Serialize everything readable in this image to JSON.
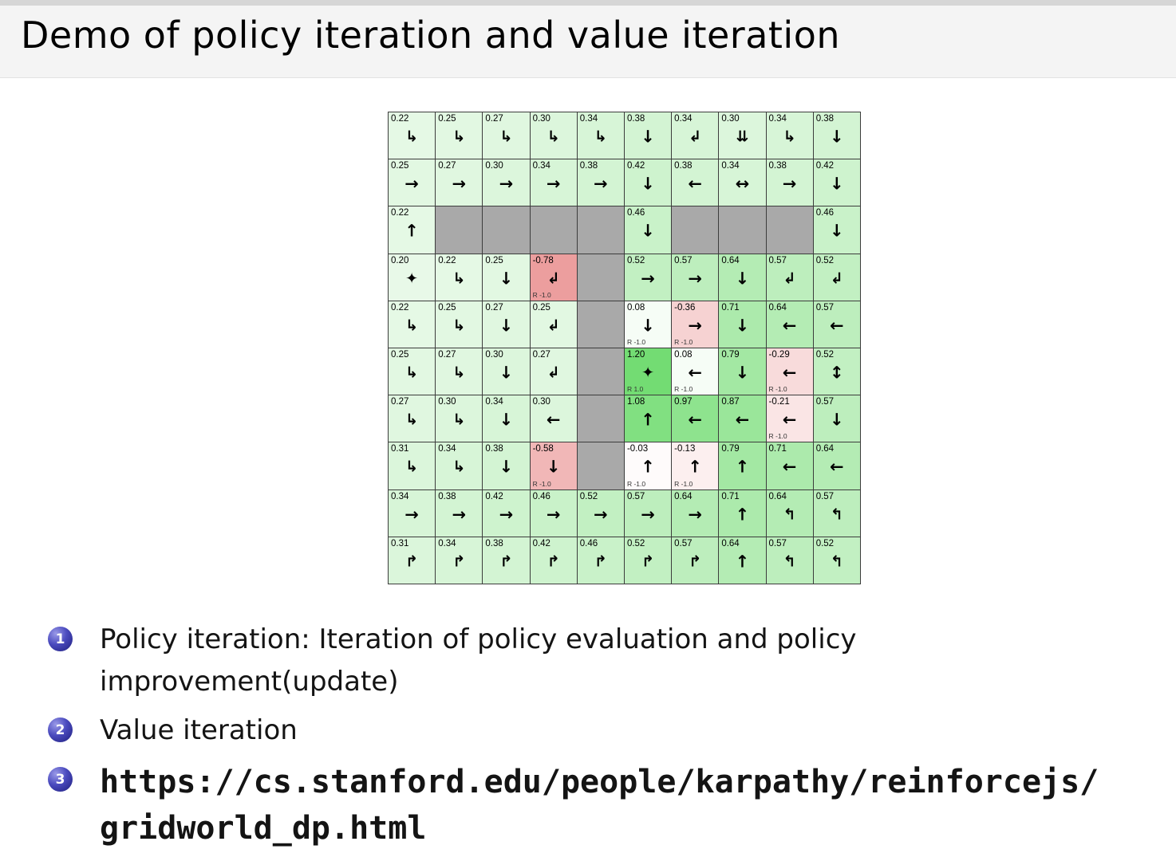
{
  "slide": {
    "title": "Demo of policy iteration and value iteration",
    "bullets": [
      {
        "num": "1",
        "text": "Policy iteration: Iteration of policy evaluation and policy improvement(update)"
      },
      {
        "num": "2",
        "text": "Value iteration"
      },
      {
        "num": "3",
        "lines": [
          "https://cs.stanford.edu/people/karpathy/reinforcejs/",
          "gridworld_dp.html"
        ]
      }
    ]
  },
  "colors": {
    "header_bg": "#f4f4f4",
    "bullet_ball": "#3b3bb0",
    "grid_line": "#3c3c3c",
    "wall": "#a9a9a9",
    "goal_green": "#73dc73",
    "penalty_red": "#ec9e9e"
  },
  "gridworld": {
    "rows": 10,
    "cols": 10,
    "arrow_glyphs": {
      "up": "↑",
      "down": "↓",
      "left": "←",
      "right": "→",
      "left-right": "↔",
      "up-down": "↕",
      "down-right": "↳",
      "down-left": "↲",
      "up-right": "↱",
      "up-left": "↰",
      "double-down": "⇊",
      "multi": "✦"
    },
    "cells": [
      [
        {
          "v": "0.22",
          "a": "down-right",
          "r": "",
          "bg": "#e5f9e5"
        },
        {
          "v": "0.25",
          "a": "down-right",
          "r": "",
          "bg": "#e2f8e2"
        },
        {
          "v": "0.27",
          "a": "down-right",
          "r": "",
          "bg": "#e0f7e0"
        },
        {
          "v": "0.30",
          "a": "down-right",
          "r": "",
          "bg": "#dcf6dc"
        },
        {
          "v": "0.34",
          "a": "down-right",
          "r": "",
          "bg": "#d7f5d7"
        },
        {
          "v": "0.38",
          "a": "down",
          "r": "",
          "bg": "#d3f4d3"
        },
        {
          "v": "0.34",
          "a": "down-left",
          "r": "",
          "bg": "#d7f5d7"
        },
        {
          "v": "0.30",
          "a": "double-down",
          "r": "",
          "bg": "#dcf6dc"
        },
        {
          "v": "0.34",
          "a": "down-right",
          "r": "",
          "bg": "#d7f5d7"
        },
        {
          "v": "0.38",
          "a": "down",
          "r": "",
          "bg": "#d3f4d3"
        }
      ],
      [
        {
          "v": "0.25",
          "a": "right",
          "r": "",
          "bg": "#e2f8e2"
        },
        {
          "v": "0.27",
          "a": "right",
          "r": "",
          "bg": "#e0f7e0"
        },
        {
          "v": "0.30",
          "a": "right",
          "r": "",
          "bg": "#dcf6dc"
        },
        {
          "v": "0.34",
          "a": "right",
          "r": "",
          "bg": "#d7f5d7"
        },
        {
          "v": "0.38",
          "a": "right",
          "r": "",
          "bg": "#d3f4d3"
        },
        {
          "v": "0.42",
          "a": "down",
          "r": "",
          "bg": "#cef3ce"
        },
        {
          "v": "0.38",
          "a": "left",
          "r": "",
          "bg": "#d3f4d3"
        },
        {
          "v": "0.34",
          "a": "left-right",
          "r": "",
          "bg": "#d7f5d7"
        },
        {
          "v": "0.38",
          "a": "right",
          "r": "",
          "bg": "#d3f4d3"
        },
        {
          "v": "0.42",
          "a": "down",
          "r": "",
          "bg": "#cef3ce"
        }
      ],
      [
        {
          "v": "0.22",
          "a": "up",
          "r": "",
          "bg": "#e5f9e5"
        },
        {
          "wall": true,
          "bg": "#a9a9a9"
        },
        {
          "wall": true,
          "bg": "#a9a9a9"
        },
        {
          "wall": true,
          "bg": "#a9a9a9"
        },
        {
          "wall": true,
          "bg": "#a9a9a9"
        },
        {
          "v": "0.46",
          "a": "down",
          "r": "",
          "bg": "#c9f2c9"
        },
        {
          "wall": true,
          "bg": "#a9a9a9"
        },
        {
          "wall": true,
          "bg": "#a9a9a9"
        },
        {
          "wall": true,
          "bg": "#a9a9a9"
        },
        {
          "v": "0.46",
          "a": "down",
          "r": "",
          "bg": "#c9f2c9"
        }
      ],
      [
        {
          "v": "0.20",
          "a": "multi",
          "r": "",
          "bg": "#e8f9e8"
        },
        {
          "v": "0.22",
          "a": "down-right",
          "r": "",
          "bg": "#e5f9e5"
        },
        {
          "v": "0.25",
          "a": "down",
          "r": "",
          "bg": "#e2f8e2"
        },
        {
          "v": "-0.78",
          "a": "down-left",
          "r": "R -1.0",
          "bg": "#ec9e9e"
        },
        {
          "wall": true,
          "bg": "#a9a9a9"
        },
        {
          "v": "0.52",
          "a": "right",
          "r": "",
          "bg": "#c2f0c2"
        },
        {
          "v": "0.57",
          "a": "right",
          "r": "",
          "bg": "#bdeebd"
        },
        {
          "v": "0.64",
          "a": "down",
          "r": "",
          "bg": "#b4ecb4"
        },
        {
          "v": "0.57",
          "a": "down-left",
          "r": "",
          "bg": "#bdeebd"
        },
        {
          "v": "0.52",
          "a": "down-left",
          "r": "",
          "bg": "#c2f0c2"
        }
      ],
      [
        {
          "v": "0.22",
          "a": "down-right",
          "r": "",
          "bg": "#e5f9e5"
        },
        {
          "v": "0.25",
          "a": "down-right",
          "r": "",
          "bg": "#e2f8e2"
        },
        {
          "v": "0.27",
          "a": "down",
          "r": "",
          "bg": "#e0f7e0"
        },
        {
          "v": "0.25",
          "a": "down-left",
          "r": "",
          "bg": "#e2f8e2"
        },
        {
          "wall": true,
          "bg": "#a9a9a9"
        },
        {
          "v": "0.08",
          "a": "down",
          "r": "R -1.0",
          "bg": "#f6fdf6"
        },
        {
          "v": "-0.36",
          "a": "right",
          "r": "R -1.0",
          "bg": "#f6d2d2"
        },
        {
          "v": "0.71",
          "a": "down",
          "r": "",
          "bg": "#aceaac"
        },
        {
          "v": "0.64",
          "a": "left",
          "r": "",
          "bg": "#b4ecb4"
        },
        {
          "v": "0.57",
          "a": "left",
          "r": "",
          "bg": "#bdeebd"
        }
      ],
      [
        {
          "v": "0.25",
          "a": "down-right",
          "r": "",
          "bg": "#e2f8e2"
        },
        {
          "v": "0.27",
          "a": "down-right",
          "r": "",
          "bg": "#e0f7e0"
        },
        {
          "v": "0.30",
          "a": "down",
          "r": "",
          "bg": "#dcf6dc"
        },
        {
          "v": "0.27",
          "a": "down-left",
          "r": "",
          "bg": "#e0f7e0"
        },
        {
          "wall": true,
          "bg": "#a9a9a9"
        },
        {
          "v": "1.20",
          "a": "multi",
          "r": "R 1.0",
          "bg": "#73dc73"
        },
        {
          "v": "0.08",
          "a": "left",
          "r": "R -1.0",
          "bg": "#f6fdf6"
        },
        {
          "v": "0.79",
          "a": "down",
          "r": "",
          "bg": "#a3e8a3"
        },
        {
          "v": "-0.29",
          "a": "left",
          "r": "R -1.0",
          "bg": "#f8dbdb"
        },
        {
          "v": "0.52",
          "a": "up-down",
          "r": "",
          "bg": "#c2f0c2"
        }
      ],
      [
        {
          "v": "0.27",
          "a": "down-right",
          "r": "",
          "bg": "#e0f7e0"
        },
        {
          "v": "0.30",
          "a": "down-right",
          "r": "",
          "bg": "#dcf6dc"
        },
        {
          "v": "0.34",
          "a": "down",
          "r": "",
          "bg": "#d7f5d7"
        },
        {
          "v": "0.30",
          "a": "left",
          "r": "",
          "bg": "#dcf6dc"
        },
        {
          "wall": true,
          "bg": "#a9a9a9"
        },
        {
          "v": "1.08",
          "a": "up",
          "r": "",
          "bg": "#81e081"
        },
        {
          "v": "0.97",
          "a": "left",
          "r": "",
          "bg": "#8ee38e"
        },
        {
          "v": "0.87",
          "a": "left",
          "r": "",
          "bg": "#9ae69a"
        },
        {
          "v": "-0.21",
          "a": "left",
          "r": "R -1.0",
          "bg": "#fae5e5"
        },
        {
          "v": "0.57",
          "a": "down",
          "r": "",
          "bg": "#bdeebd"
        }
      ],
      [
        {
          "v": "0.31",
          "a": "down-right",
          "r": "",
          "bg": "#dbf6db"
        },
        {
          "v": "0.34",
          "a": "down-right",
          "r": "",
          "bg": "#d7f5d7"
        },
        {
          "v": "0.38",
          "a": "down",
          "r": "",
          "bg": "#d3f4d3"
        },
        {
          "v": "-0.58",
          "a": "down",
          "r": "R -1.0",
          "bg": "#f1b7b7"
        },
        {
          "wall": true,
          "bg": "#a9a9a9"
        },
        {
          "v": "-0.03",
          "a": "up",
          "r": "R -1.0",
          "bg": "#fefbfb"
        },
        {
          "v": "-0.13",
          "a": "up",
          "r": "R -1.0",
          "bg": "#fcefef"
        },
        {
          "v": "0.79",
          "a": "up",
          "r": "",
          "bg": "#a3e8a3"
        },
        {
          "v": "0.71",
          "a": "left",
          "r": "",
          "bg": "#aceaac"
        },
        {
          "v": "0.64",
          "a": "left",
          "r": "",
          "bg": "#b4ecb4"
        }
      ],
      [
        {
          "v": "0.34",
          "a": "right",
          "r": "",
          "bg": "#d7f5d7"
        },
        {
          "v": "0.38",
          "a": "right",
          "r": "",
          "bg": "#d3f4d3"
        },
        {
          "v": "0.42",
          "a": "right",
          "r": "",
          "bg": "#cef3ce"
        },
        {
          "v": "0.46",
          "a": "right",
          "r": "",
          "bg": "#c9f2c9"
        },
        {
          "v": "0.52",
          "a": "right",
          "r": "",
          "bg": "#c2f0c2"
        },
        {
          "v": "0.57",
          "a": "right",
          "r": "",
          "bg": "#bdeebd"
        },
        {
          "v": "0.64",
          "a": "right",
          "r": "",
          "bg": "#b4ecb4"
        },
        {
          "v": "0.71",
          "a": "up",
          "r": "",
          "bg": "#aceaac"
        },
        {
          "v": "0.64",
          "a": "up-left",
          "r": "",
          "bg": "#b4ecb4"
        },
        {
          "v": "0.57",
          "a": "up-left",
          "r": "",
          "bg": "#bdeebd"
        }
      ],
      [
        {
          "v": "0.31",
          "a": "up-right",
          "r": "",
          "bg": "#dbf6db"
        },
        {
          "v": "0.34",
          "a": "up-right",
          "r": "",
          "bg": "#d7f5d7"
        },
        {
          "v": "0.38",
          "a": "up-right",
          "r": "",
          "bg": "#d3f4d3"
        },
        {
          "v": "0.42",
          "a": "up-right",
          "r": "",
          "bg": "#cef3ce"
        },
        {
          "v": "0.46",
          "a": "up-right",
          "r": "",
          "bg": "#c9f2c9"
        },
        {
          "v": "0.52",
          "a": "up-right",
          "r": "",
          "bg": "#c2f0c2"
        },
        {
          "v": "0.57",
          "a": "up-right",
          "r": "",
          "bg": "#bdeebd"
        },
        {
          "v": "0.64",
          "a": "up",
          "r": "",
          "bg": "#b4ecb4"
        },
        {
          "v": "0.57",
          "a": "up-left",
          "r": "",
          "bg": "#bdeebd"
        },
        {
          "v": "0.52",
          "a": "up-left",
          "r": "",
          "bg": "#c2f0c2"
        }
      ]
    ]
  }
}
